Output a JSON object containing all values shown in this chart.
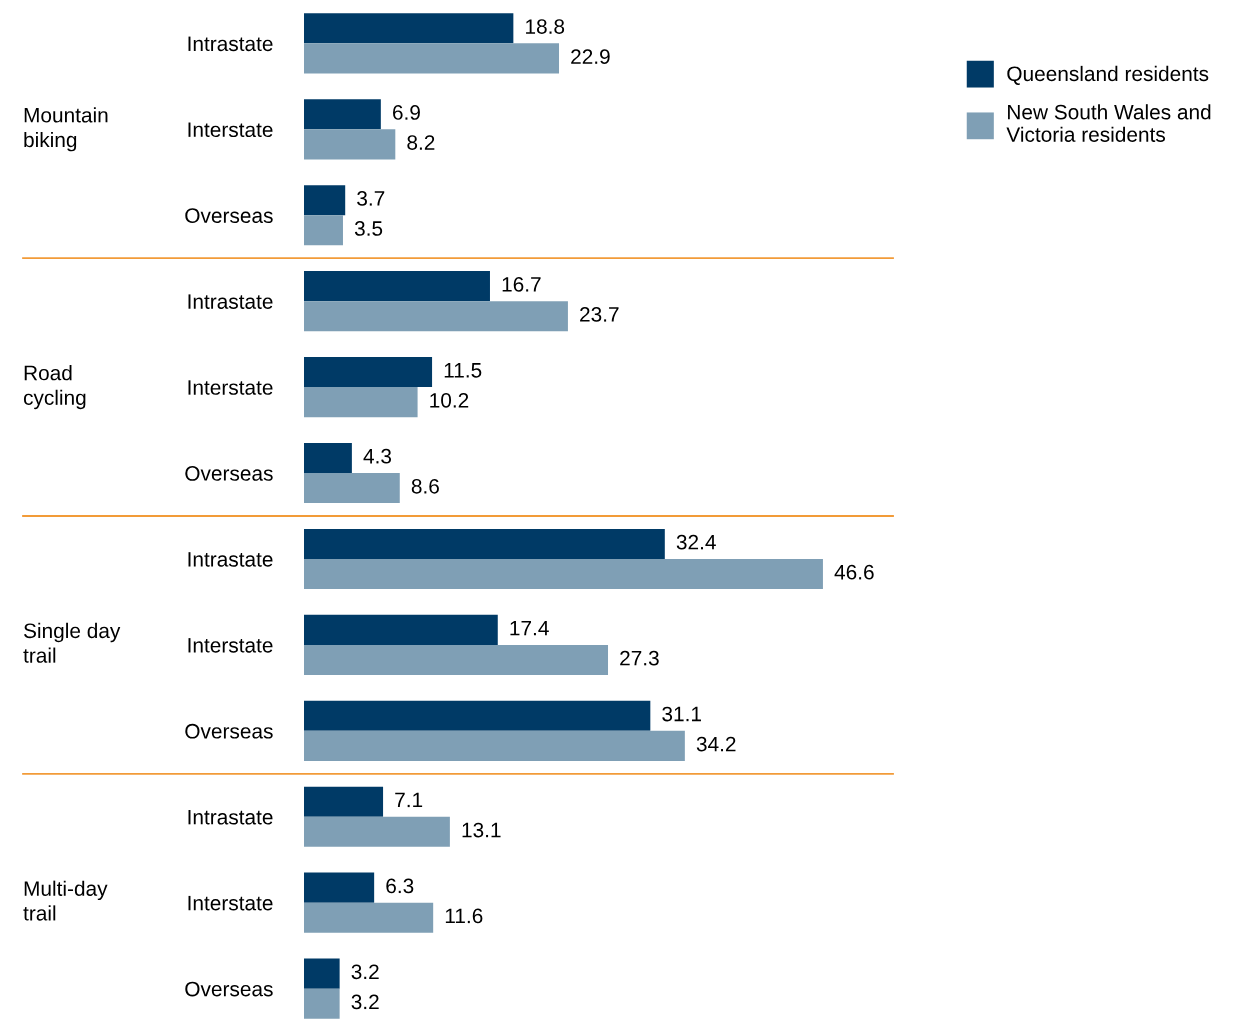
{
  "chart_data": {
    "type": "bar",
    "orientation": "horizontal",
    "data_labels": true,
    "legend": "top right",
    "grid": false,
    "categories": [
      "Intrastate",
      "Interstate",
      "Overseas",
      "Intrastate",
      "Interstate",
      "Overseas",
      "Intrastate",
      "Interstate",
      "Overseas",
      "Intrastate",
      "Interstate",
      "Overseas"
    ],
    "series": [
      {
        "name": "Queensland residents",
        "color": "#003a66",
        "values": [
          18.8,
          6.9,
          3.7,
          16.7,
          11.5,
          4.3,
          32.4,
          17.4,
          31.1,
          7.1,
          6.3,
          3.2
        ]
      },
      {
        "name": "New South Wales and\nVictoria residents",
        "color": "#7f9fb5",
        "values": [
          22.9,
          8.2,
          3.5,
          23.7,
          10.2,
          8.6,
          46.6,
          27.3,
          34.2,
          13.1,
          11.6,
          3.2
        ]
      }
    ],
    "annotations": [
      "Mountain\nbiking",
      "Road\ncycling",
      "Single day\ntrail",
      "Multi-day\ntrail"
    ]
  }
}
